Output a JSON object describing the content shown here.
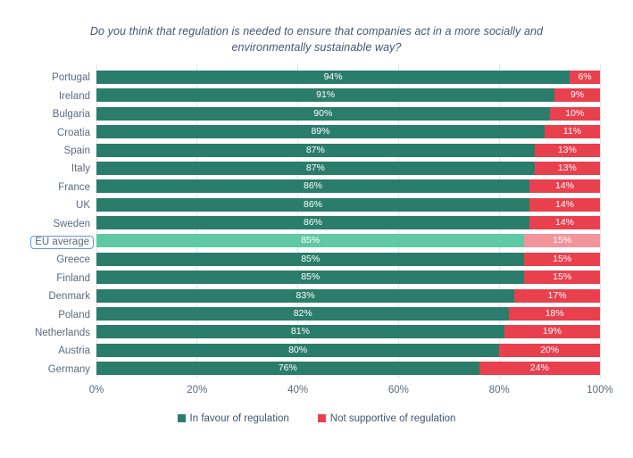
{
  "header": {
    "title_line1": "Do you think that regulation is needed to ensure that companies act in a more socially and",
    "title_line2": "environmentally sustainable way?"
  },
  "chart_data": {
    "type": "bar",
    "orientation": "horizontal",
    "stacked": true,
    "title": "Do you think that regulation is needed to ensure that companies act in a more socially and environmentally sustainable way?",
    "categories": [
      "Portugal",
      "Ireland",
      "Bulgaria",
      "Croatia",
      "Spain",
      "Italy",
      "France",
      "UK",
      "Sweden",
      "EU average",
      "Greece",
      "Finland",
      "Denmark",
      "Poland",
      "Netherlands",
      "Austria",
      "Germany"
    ],
    "series": [
      {
        "name": "In favour of regulation",
        "color": "#2B7D6B",
        "highlight_color": "#5FC8A5",
        "values": [
          94,
          91,
          90,
          89,
          87,
          87,
          86,
          86,
          86,
          85,
          85,
          85,
          83,
          82,
          81,
          80,
          76
        ]
      },
      {
        "name": "Not supportive of regulation",
        "color": "#E9404E",
        "highlight_color": "#F2949C",
        "values": [
          6,
          9,
          10,
          11,
          13,
          13,
          14,
          14,
          14,
          15,
          15,
          15,
          17,
          18,
          19,
          20,
          24
        ]
      }
    ],
    "highlighted_category": "EU average",
    "value_label_format": "{v}%",
    "x_ticks": [
      "0%",
      "20%",
      "40%",
      "60%",
      "80%",
      "100%"
    ],
    "xlim": [
      0,
      100
    ],
    "grid": true,
    "legend_position": "bottom"
  },
  "legend": {
    "items": [
      {
        "label": "In favour of regulation",
        "color": "#2B7D6B"
      },
      {
        "label": "Not supportive of regulation",
        "color": "#E9404E"
      }
    ]
  },
  "colors": {
    "title_text": "#44546F",
    "axis_text": "#5b6b7d",
    "gridline": "#dee5ee",
    "highlight_box_border": "#6397db",
    "background": "#ffffff"
  }
}
